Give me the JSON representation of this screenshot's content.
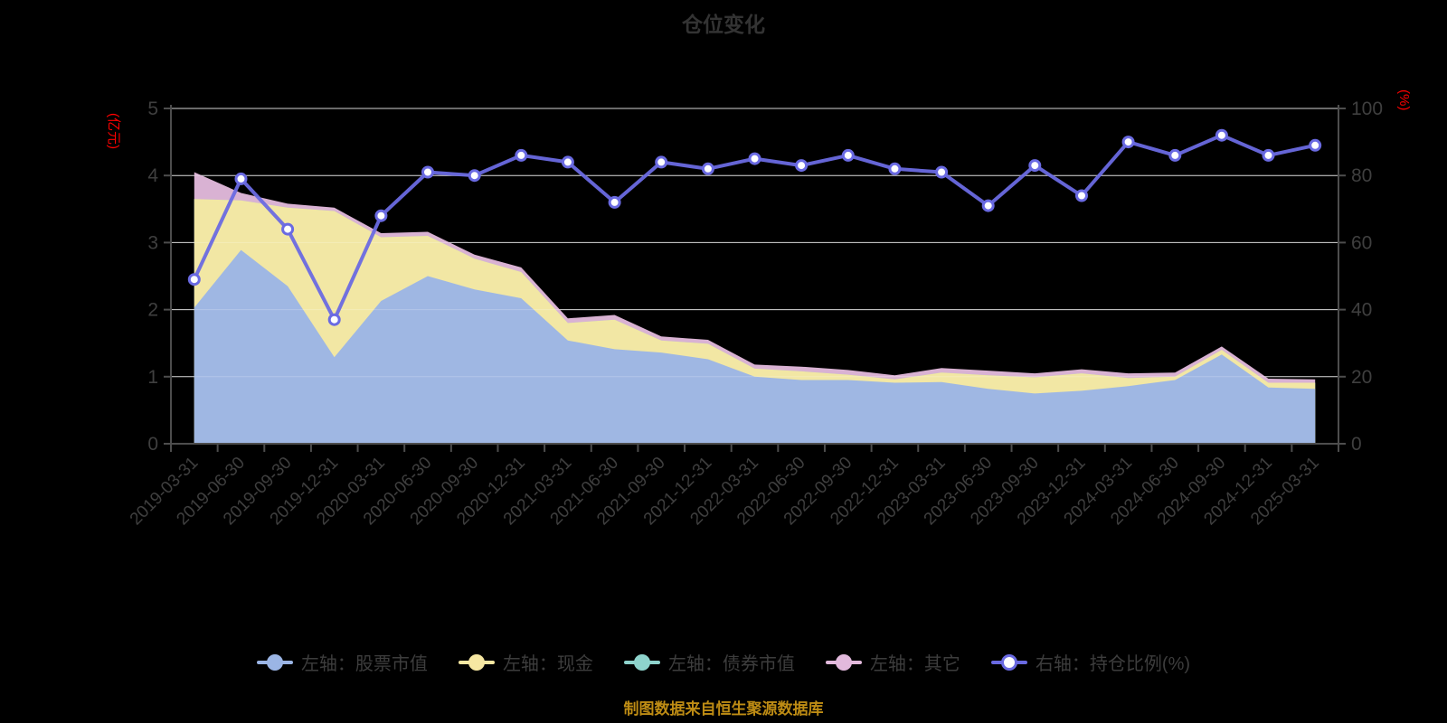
{
  "title": "仓位变化",
  "footer": "制图数据来自恒生聚源数据库",
  "colors": {
    "stock": "#9BB5E5",
    "cash": "#F6E7A2",
    "bond": "#8ED3CC",
    "other": "#E2B9DC",
    "ratio_line": "#6A6AE2",
    "grid": "#C9C9C9",
    "axis": "#4D4D4D",
    "tick_text": "#3F3F3F",
    "axis_name": "#FF0000",
    "title_text": "#333333",
    "legend_text": "#3D3D3D",
    "footer_text": "#BE8C14",
    "background": "#000000",
    "dot_fill": "#FFFFFF"
  },
  "left_axis": {
    "name": "(亿元)",
    "ticks": [
      "0",
      "1",
      "2",
      "3",
      "4",
      "5"
    ],
    "min": 0,
    "max": 5
  },
  "right_axis": {
    "name": "(%)",
    "ticks": [
      "0",
      "20",
      "40",
      "60",
      "80",
      "100"
    ],
    "min": 0,
    "max": 100
  },
  "legend": [
    {
      "label": "左轴：股票市值",
      "type": "area",
      "color_key": "stock"
    },
    {
      "label": "左轴：现金",
      "type": "area",
      "color_key": "cash"
    },
    {
      "label": "左轴：债券市值",
      "type": "area",
      "color_key": "bond"
    },
    {
      "label": "左轴：其它",
      "type": "area",
      "color_key": "other"
    },
    {
      "label": "右轴：持仓比例(%)",
      "type": "line",
      "color_key": "ratio_line"
    }
  ],
  "chart_data": {
    "type": "area",
    "subtype": "stacked-area-with-line",
    "grid": true,
    "legend_position": "bottom",
    "left_ylim": [
      0,
      5
    ],
    "right_ylim": [
      0,
      100
    ],
    "categories": [
      "2019-03-31",
      "2019-06-30",
      "2019-09-30",
      "2019-12-31",
      "2020-03-31",
      "2020-06-30",
      "2020-09-30",
      "2020-12-31",
      "2021-03-31",
      "2021-06-30",
      "2021-09-30",
      "2021-12-31",
      "2022-03-31",
      "2022-06-30",
      "2022-09-30",
      "2022-12-31",
      "2023-03-31",
      "2023-06-30",
      "2023-09-30",
      "2023-12-31",
      "2024-03-31",
      "2024-06-30",
      "2024-09-30",
      "2024-12-31",
      "2025-03-31"
    ],
    "series": [
      {
        "name": "左轴：股票市值",
        "axis": "left",
        "stack": true,
        "color_key": "stock",
        "values": [
          2.03,
          2.89,
          2.35,
          1.29,
          2.13,
          2.5,
          2.3,
          2.17,
          1.54,
          1.41,
          1.36,
          1.26,
          1.0,
          0.95,
          0.95,
          0.91,
          0.92,
          0.82,
          0.75,
          0.79,
          0.86,
          0.95,
          1.33,
          0.84,
          0.82
        ]
      },
      {
        "name": "左轴：现金",
        "axis": "left",
        "stack": true,
        "color_key": "cash",
        "values": [
          1.62,
          0.74,
          1.17,
          2.18,
          0.95,
          0.6,
          0.46,
          0.39,
          0.26,
          0.44,
          0.18,
          0.23,
          0.12,
          0.13,
          0.08,
          0.05,
          0.14,
          0.2,
          0.24,
          0.26,
          0.12,
          0.05,
          0.07,
          0.07,
          0.09
        ]
      },
      {
        "name": "左轴：债券市值",
        "axis": "left",
        "stack": true,
        "color_key": "bond",
        "values": [
          0,
          0,
          0,
          0,
          0,
          0,
          0,
          0,
          0,
          0,
          0,
          0,
          0,
          0,
          0,
          0,
          0,
          0,
          0,
          0,
          0,
          0,
          0,
          0,
          0
        ]
      },
      {
        "name": "左轴：其它",
        "axis": "left",
        "stack": true,
        "color_key": "other",
        "values": [
          0.4,
          0.11,
          0.06,
          0.05,
          0.06,
          0.06,
          0.06,
          0.07,
          0.07,
          0.07,
          0.06,
          0.06,
          0.06,
          0.07,
          0.07,
          0.06,
          0.07,
          0.07,
          0.06,
          0.06,
          0.07,
          0.06,
          0.05,
          0.06,
          0.05
        ]
      },
      {
        "name": "右轴：持仓比例(%)",
        "axis": "right",
        "type": "line",
        "color_key": "ratio_line",
        "values": [
          49,
          79,
          64,
          37,
          68,
          81,
          80,
          86,
          84,
          72,
          84,
          82,
          85,
          83,
          86,
          82,
          81,
          71,
          83,
          74,
          90,
          86,
          92,
          86,
          89
        ]
      }
    ]
  }
}
